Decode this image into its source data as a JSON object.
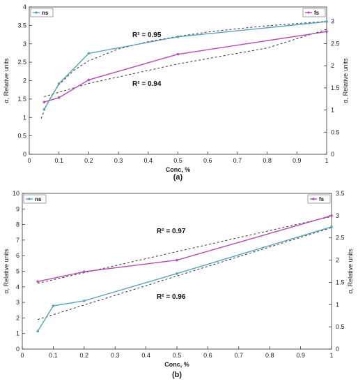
{
  "chart_data": [
    {
      "type": "line",
      "panel_label": "(a)",
      "xlabel": "Conc, %",
      "ylabel": "α, Relative units",
      "ylabel_right": "α, Relative units",
      "xlim": [
        0,
        1
      ],
      "ylim": [
        0,
        4
      ],
      "ylim_right": [
        0,
        3.2
      ],
      "xticks": [
        "0",
        "0.1",
        "0.2",
        "0.3",
        "0.4",
        "0.5",
        "0.6",
        "0.7",
        "0.8",
        "0.9",
        "1"
      ],
      "yticks": [
        "0",
        "0.5",
        "1",
        "1.5",
        "2",
        "2.5",
        "3",
        "3.5",
        "4"
      ],
      "yticks_right": [
        "0",
        "0.5",
        "1",
        "1.5",
        "2",
        "2.5",
        "3"
      ],
      "grid": false,
      "series": [
        {
          "name": "ns",
          "axis": "left",
          "color": "#5aa2b8",
          "x": [
            0.05,
            0.1,
            0.2,
            0.5,
            1
          ],
          "y": [
            1.22,
            1.92,
            2.74,
            3.19,
            3.6
          ]
        },
        {
          "name": "fs",
          "axis": "right",
          "color": "#b44cb4",
          "x": [
            0.05,
            0.1,
            0.2,
            0.5,
            1
          ],
          "y": [
            1.18,
            1.28,
            1.68,
            2.26,
            2.77
          ]
        }
      ],
      "trendlines": [
        {
          "axis": "left",
          "label": "R² = 0.95",
          "x": [
            0.04,
            0.06,
            0.08,
            0.1,
            0.15,
            0.2,
            0.3,
            0.4,
            0.5,
            0.6,
            0.7,
            0.8,
            0.9,
            1.0
          ],
          "y": [
            0.97,
            1.37,
            1.66,
            1.89,
            2.28,
            2.54,
            2.86,
            3.06,
            3.2,
            3.32,
            3.41,
            3.49,
            3.55,
            3.61
          ]
        },
        {
          "axis": "right",
          "label": "R² = 0.94",
          "x": [
            0.05,
            0.2,
            0.5,
            0.8,
            1.0
          ],
          "y": [
            1.3,
            1.6,
            2.04,
            2.4,
            2.82
          ]
        }
      ],
      "legend": [
        {
          "name": "ns",
          "position": "top-left"
        },
        {
          "name": "fs",
          "position": "top-right"
        }
      ]
    },
    {
      "type": "line",
      "panel_label": "(b)",
      "xlabel": "Conc, %",
      "ylabel": "α, Relative units",
      "ylabel_right": "α, Relative units",
      "xlim": [
        0,
        1
      ],
      "ylim": [
        0,
        10
      ],
      "ylim_right": [
        0,
        3.5
      ],
      "xticks": [
        "0",
        "0.1",
        "0.2",
        "0.3",
        "0.4",
        "0.5",
        "0.6",
        "0.7",
        "0.8",
        "0.9",
        "1"
      ],
      "yticks": [
        "0",
        "1",
        "2",
        "3",
        "4",
        "5",
        "6",
        "7",
        "8",
        "9",
        "10"
      ],
      "yticks_right": [
        "0",
        "0.5",
        "1",
        "1.5",
        "2",
        "2.5",
        "3",
        "3.5"
      ],
      "grid": false,
      "series": [
        {
          "name": "ns",
          "axis": "left",
          "color": "#5aa2b8",
          "x": [
            0.05,
            0.1,
            0.2,
            0.5,
            1
          ],
          "y": [
            1.15,
            2.78,
            3.1,
            4.85,
            7.85
          ]
        },
        {
          "name": "fs",
          "axis": "right",
          "color": "#b44cb4",
          "x": [
            0.05,
            0.2,
            0.5,
            1
          ],
          "y": [
            1.52,
            1.74,
            2.0,
            3.0
          ]
        }
      ],
      "trendlines": [
        {
          "axis": "right",
          "label": "R² = 0.97",
          "x": [
            0.05,
            1.0
          ],
          "y": [
            1.48,
            2.98
          ]
        },
        {
          "axis": "left",
          "label": "R² = 0.96",
          "x": [
            0.05,
            1.0
          ],
          "y": [
            1.9,
            7.8
          ]
        }
      ],
      "legend": [
        {
          "name": "ns",
          "position": "top-left"
        },
        {
          "name": "fs",
          "position": "top-right"
        }
      ]
    }
  ]
}
